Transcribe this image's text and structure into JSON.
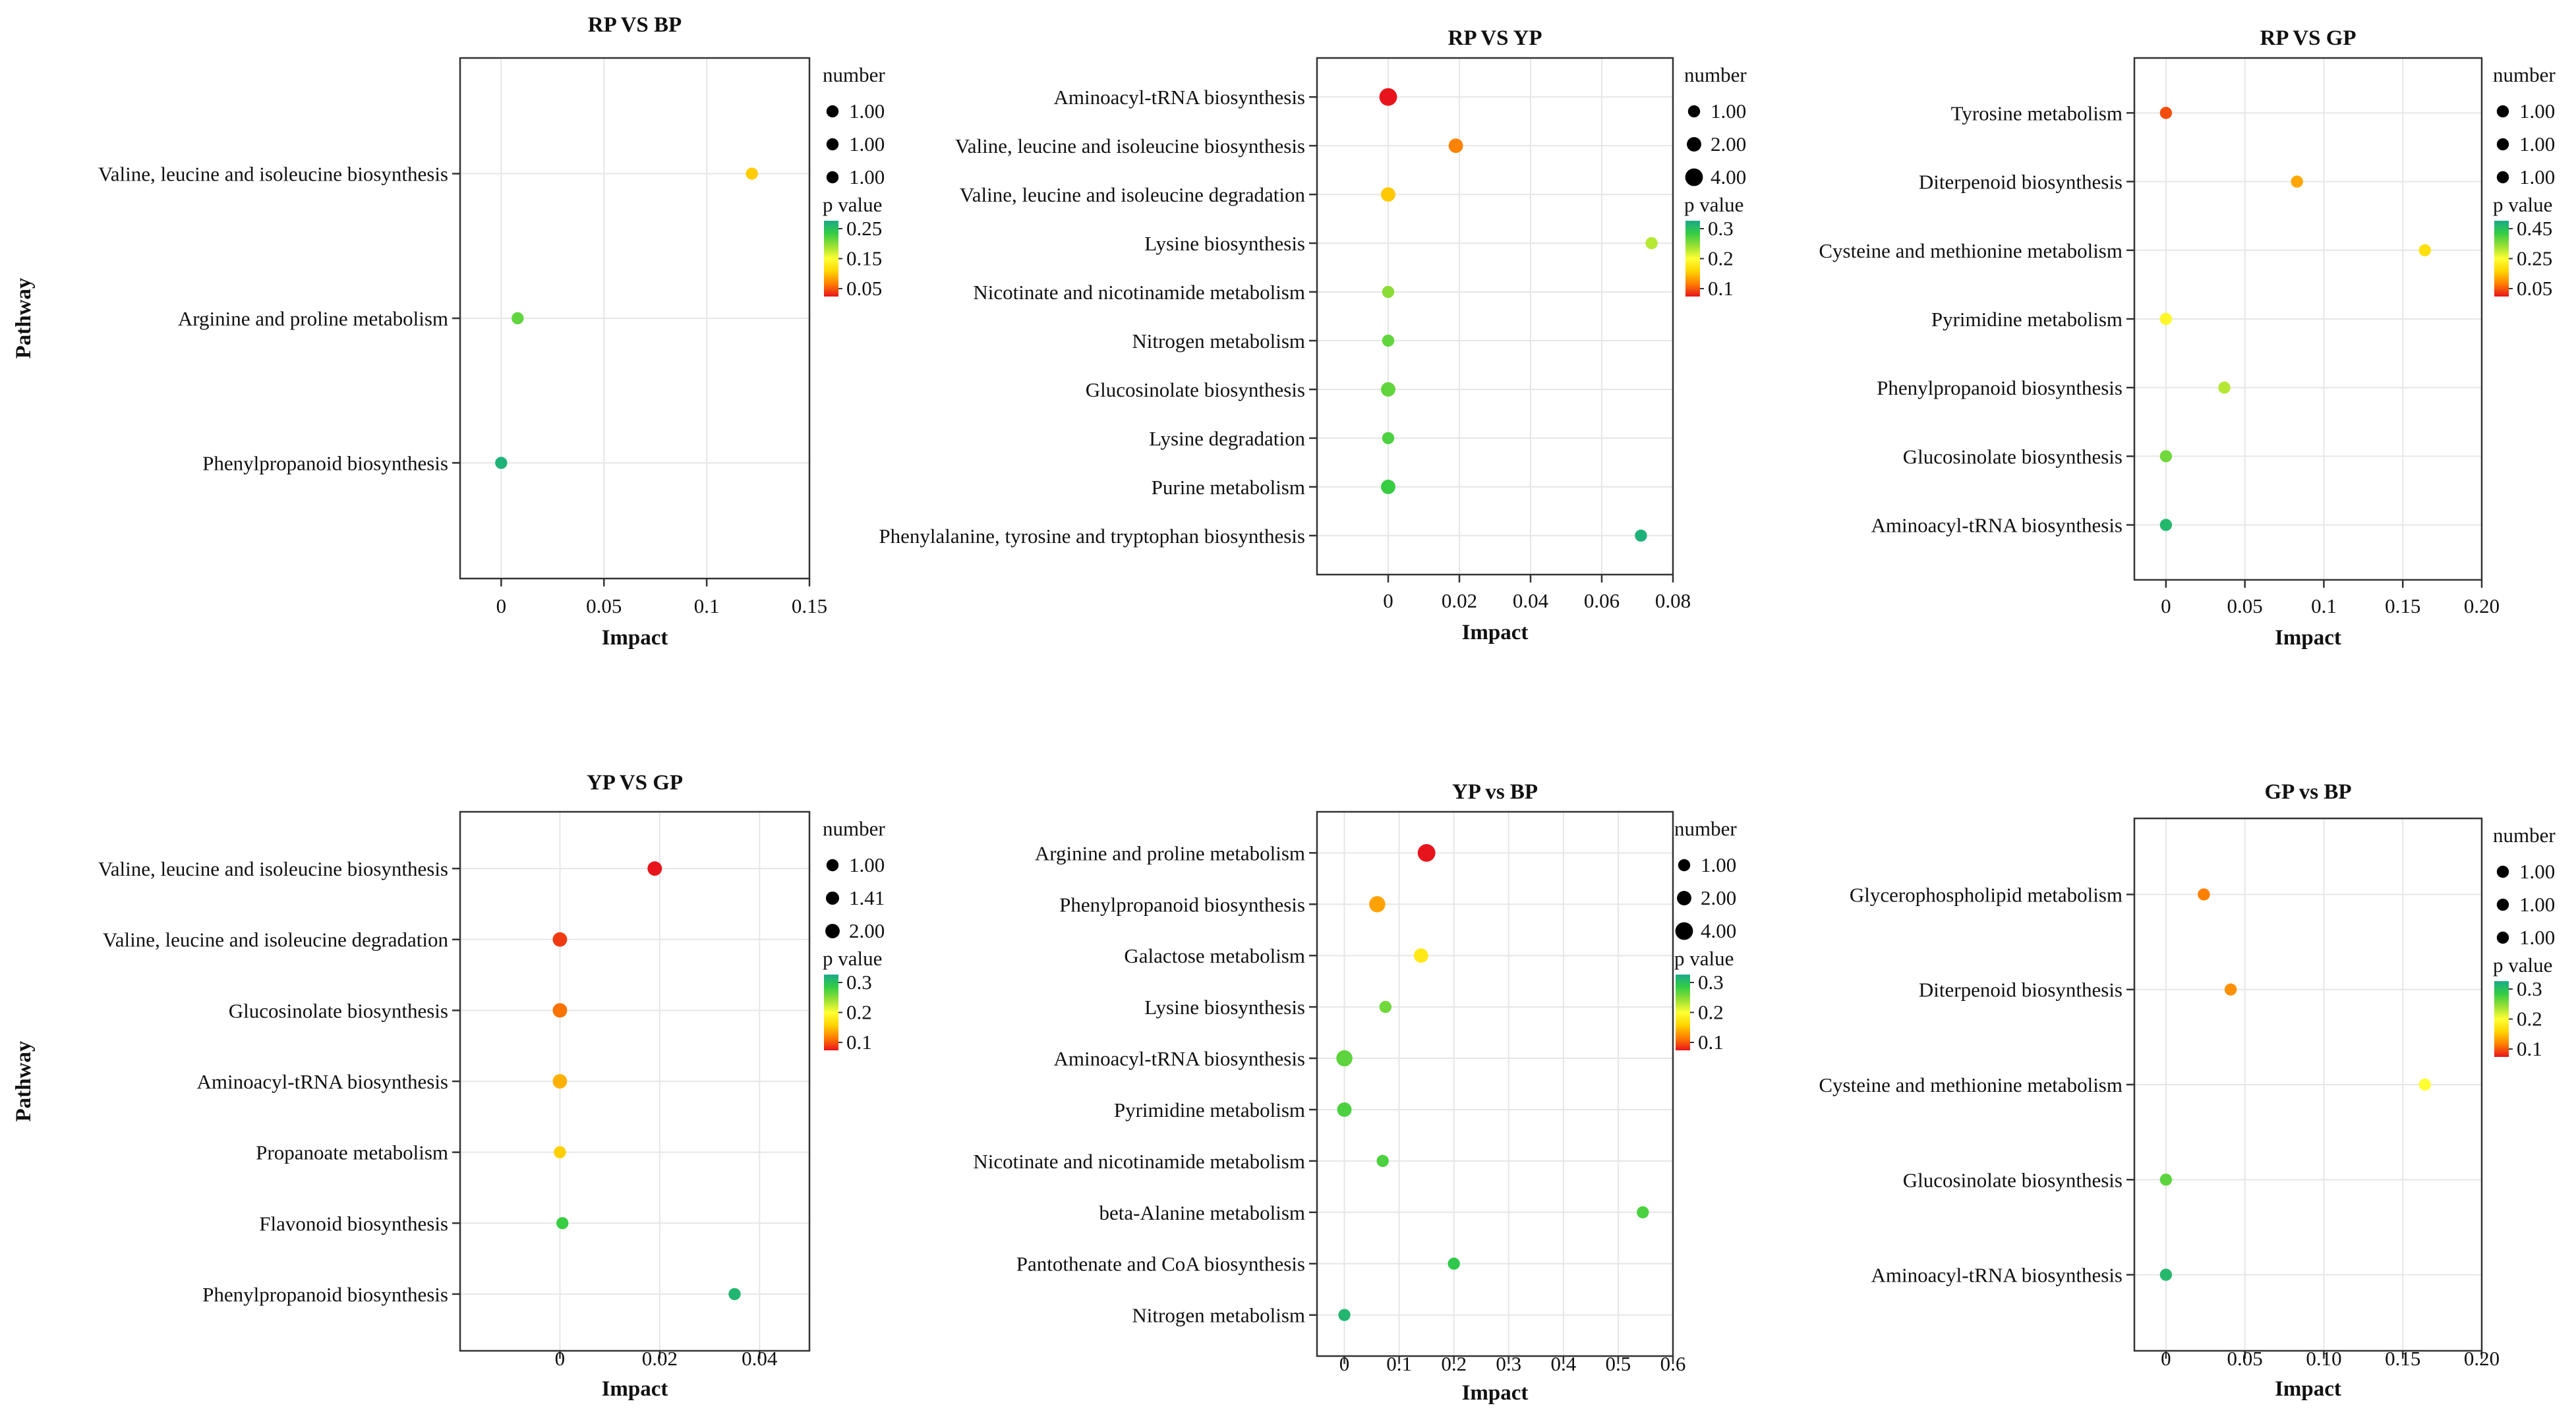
{
  "figure": {
    "y_axis_label": "Pathway",
    "x_axis_label": "Impact",
    "size_legend_title": "number",
    "color_legend_title": "p value"
  },
  "colors": {
    "scale": [
      "#e8141c",
      "#ff7f00",
      "#ffd400",
      "#ffff33",
      "#99e033",
      "#33cc44",
      "#1aaa88"
    ],
    "grid": "#e6e6e6",
    "axis": "#333333"
  },
  "chart_data": [
    {
      "type": "scatter",
      "title": "RP VS BP",
      "xlim": [
        -0.02,
        0.15
      ],
      "xticks": [
        0,
        0.05,
        0.1,
        0.15
      ],
      "xtick_labels": [
        "0",
        "0.05",
        "0.1",
        "0.15"
      ],
      "y_categories": [
        "Valine, leucine and isoleucine biosynthesis",
        "Arginine and proline metabolism",
        "Phenylpropanoid biosynthesis"
      ],
      "points": [
        {
          "pathway": "Valine, leucine and isoleucine biosynthesis",
          "impact": 0.122,
          "number": 1,
          "p_value": 0.13
        },
        {
          "pathway": "Arginine and proline metabolism",
          "impact": 0.008,
          "number": 1,
          "p_value": 0.24
        },
        {
          "pathway": "Phenylpropanoid biosynthesis",
          "impact": 0.0,
          "number": 1,
          "p_value": 0.29
        }
      ],
      "size_legend": [
        "1.00",
        "1.00",
        "1.00"
      ],
      "color_legend": {
        "ticks": [
          "0.25",
          "0.15",
          "0.05"
        ],
        "range": [
          0.05,
          0.3
        ]
      },
      "show_ylabel": true
    },
    {
      "type": "scatter",
      "title": "RP VS YP",
      "xlim": [
        -0.02,
        0.08
      ],
      "xticks": [
        0,
        0.02,
        0.04,
        0.06,
        0.08
      ],
      "xtick_labels": [
        "0",
        "0.02",
        "0.04",
        "0.06",
        "0.08"
      ],
      "y_categories": [
        "Aminoacyl-tRNA biosynthesis",
        "Valine, leucine and isoleucine biosynthesis",
        "Valine, leucine and isoleucine degradation",
        "Lysine biosynthesis",
        "Nicotinate and nicotinamide metabolism",
        "Nitrogen metabolism",
        "Glucosinolate biosynthesis",
        "Lysine degradation",
        "Purine metabolism",
        "Phenylalanine, tyrosine and tryptophan biosynthesis"
      ],
      "points": [
        {
          "pathway": "Aminoacyl-tRNA biosynthesis",
          "impact": 0.0,
          "number": 4,
          "p_value": 0.01
        },
        {
          "pathway": "Valine, leucine and isoleucine biosynthesis",
          "impact": 0.019,
          "number": 2,
          "p_value": 0.06
        },
        {
          "pathway": "Valine, leucine and isoleucine degradation",
          "impact": 0.0,
          "number": 2,
          "p_value": 0.1
        },
        {
          "pathway": "Lysine biosynthesis",
          "impact": 0.074,
          "number": 1,
          "p_value": 0.19
        },
        {
          "pathway": "Nicotinate and nicotinamide metabolism",
          "impact": 0.0,
          "number": 1,
          "p_value": 0.21
        },
        {
          "pathway": "Nitrogen metabolism",
          "impact": 0.0,
          "number": 1,
          "p_value": 0.23
        },
        {
          "pathway": "Glucosinolate biosynthesis",
          "impact": 0.0,
          "number": 2,
          "p_value": 0.23
        },
        {
          "pathway": "Lysine degradation",
          "impact": 0.0,
          "number": 1,
          "p_value": 0.24
        },
        {
          "pathway": "Purine metabolism",
          "impact": 0.0,
          "number": 2,
          "p_value": 0.25
        },
        {
          "pathway": "Phenylalanine, tyrosine and tryptophan biosynthesis",
          "impact": 0.071,
          "number": 1,
          "p_value": 0.29
        }
      ],
      "size_legend": [
        "1.00",
        "2.00",
        "4.00"
      ],
      "color_legend": {
        "ticks": [
          "0.3",
          "0.2",
          "0.1"
        ],
        "range": [
          0.01,
          0.3
        ]
      },
      "show_ylabel": false
    },
    {
      "type": "scatter",
      "title": "RP VS GP",
      "xlim": [
        -0.02,
        0.2
      ],
      "xticks": [
        0,
        0.05,
        0.1,
        0.15,
        0.2
      ],
      "xtick_labels": [
        "0",
        "0.05",
        "0.1",
        "0.15",
        "0.20"
      ],
      "y_categories": [
        "Tyrosine metabolism",
        "Diterpenoid biosynthesis",
        "Cysteine and methionine metabolism",
        "Pyrimidine metabolism",
        "Phenylpropanoid biosynthesis",
        "Glucosinolate biosynthesis",
        "Aminoacyl-tRNA biosynthesis"
      ],
      "points": [
        {
          "pathway": "Tyrosine metabolism",
          "impact": 0.0,
          "number": 1,
          "p_value": 0.09
        },
        {
          "pathway": "Diterpenoid biosynthesis",
          "impact": 0.083,
          "number": 1,
          "p_value": 0.16
        },
        {
          "pathway": "Cysteine and methionine metabolism",
          "impact": 0.164,
          "number": 1,
          "p_value": 0.22
        },
        {
          "pathway": "Pyrimidine metabolism",
          "impact": 0.0,
          "number": 1,
          "p_value": 0.26
        },
        {
          "pathway": "Phenylpropanoid biosynthesis",
          "impact": 0.037,
          "number": 1,
          "p_value": 0.33
        },
        {
          "pathway": "Glucosinolate biosynthesis",
          "impact": 0.0,
          "number": 1,
          "p_value": 0.38
        },
        {
          "pathway": "Aminoacyl-tRNA biosynthesis",
          "impact": 0.0,
          "number": 1,
          "p_value": 0.47
        }
      ],
      "size_legend": [
        "1.00",
        "1.00",
        "1.00"
      ],
      "color_legend": {
        "ticks": [
          "0.45",
          "0.25",
          "0.05"
        ],
        "range": [
          0.05,
          0.5
        ]
      },
      "show_ylabel": false
    },
    {
      "type": "scatter",
      "title": "YP VS GP",
      "xlim": [
        -0.02,
        0.05
      ],
      "xticks": [
        0,
        0.02,
        0.04
      ],
      "xtick_labels": [
        "0",
        "0.02",
        "0.04"
      ],
      "y_categories": [
        "Valine, leucine and isoleucine biosynthesis",
        "Valine, leucine and isoleucine degradation",
        "Glucosinolate biosynthesis",
        "Aminoacyl-tRNA biosynthesis",
        "Propanoate metabolism",
        "Flavonoid biosynthesis",
        "Phenylpropanoid biosynthesis"
      ],
      "points": [
        {
          "pathway": "Valine, leucine and isoleucine biosynthesis",
          "impact": 0.019,
          "number": 2,
          "p_value": 0.01
        },
        {
          "pathway": "Valine, leucine and isoleucine degradation",
          "impact": 0.0,
          "number": 2,
          "p_value": 0.03
        },
        {
          "pathway": "Glucosinolate biosynthesis",
          "impact": 0.0,
          "number": 2,
          "p_value": 0.06
        },
        {
          "pathway": "Aminoacyl-tRNA biosynthesis",
          "impact": 0.0,
          "number": 2,
          "p_value": 0.1
        },
        {
          "pathway": "Propanoate metabolism",
          "impact": 0.0,
          "number": 1,
          "p_value": 0.12
        },
        {
          "pathway": "Flavonoid biosynthesis",
          "impact": 0.0005,
          "number": 1,
          "p_value": 0.29
        },
        {
          "pathway": "Phenylpropanoid biosynthesis",
          "impact": 0.035,
          "number": 1,
          "p_value": 0.33
        }
      ],
      "size_legend": [
        "1.00",
        "1.41",
        "2.00"
      ],
      "color_legend": {
        "ticks": [
          "0.3",
          "0.2",
          "0.1"
        ],
        "range": [
          0.01,
          0.35
        ]
      },
      "show_ylabel": true
    },
    {
      "type": "scatter",
      "title": "YP vs BP",
      "xlim": [
        -0.05,
        0.6
      ],
      "xticks": [
        0,
        0.1,
        0.2,
        0.3,
        0.4,
        0.5,
        0.6
      ],
      "xtick_labels": [
        "0",
        "0.1",
        "0.2",
        "0.3",
        "0.4",
        "0.5",
        "0.6"
      ],
      "y_categories": [
        "Arginine and proline metabolism",
        "Phenylpropanoid biosynthesis",
        "Galactose metabolism",
        "Lysine biosynthesis",
        "Aminoacyl-tRNA biosynthesis",
        "Pyrimidine metabolism",
        "Nicotinate and nicotinamide metabolism",
        "beta-Alanine metabolism",
        "Pantothenate and CoA biosynthesis",
        "Nitrogen metabolism"
      ],
      "points": [
        {
          "pathway": "Arginine and proline metabolism",
          "impact": 0.15,
          "number": 4,
          "p_value": 0.01
        },
        {
          "pathway": "Phenylpropanoid biosynthesis",
          "impact": 0.06,
          "number": 3,
          "p_value": 0.09
        },
        {
          "pathway": "Galactose metabolism",
          "impact": 0.14,
          "number": 2,
          "p_value": 0.15
        },
        {
          "pathway": "Lysine biosynthesis",
          "impact": 0.075,
          "number": 1,
          "p_value": 0.26
        },
        {
          "pathway": "Aminoacyl-tRNA biosynthesis",
          "impact": 0.0,
          "number": 3,
          "p_value": 0.27
        },
        {
          "pathway": "Pyrimidine metabolism",
          "impact": 0.0,
          "number": 2,
          "p_value": 0.28
        },
        {
          "pathway": "Nicotinate and nicotinamide metabolism",
          "impact": 0.07,
          "number": 1,
          "p_value": 0.28
        },
        {
          "pathway": "beta-Alanine metabolism",
          "impact": 0.545,
          "number": 1,
          "p_value": 0.28
        },
        {
          "pathway": "Pantothenate and CoA biosynthesis",
          "impact": 0.2,
          "number": 1,
          "p_value": 0.3
        },
        {
          "pathway": "Nitrogen metabolism",
          "impact": 0.0,
          "number": 1,
          "p_value": 0.33
        }
      ],
      "size_legend": [
        "1.00",
        "2.00",
        "4.00"
      ],
      "color_legend": {
        "ticks": [
          "0.3",
          "0.2",
          "0.1"
        ],
        "range": [
          0.01,
          0.35
        ]
      },
      "show_ylabel": false
    },
    {
      "type": "scatter",
      "title": "GP vs BP",
      "xlim": [
        -0.02,
        0.2
      ],
      "xticks": [
        0,
        0.05,
        0.1,
        0.15,
        0.2
      ],
      "xtick_labels": [
        "0",
        "0.05",
        "0.10",
        "0.15",
        "0.20"
      ],
      "y_categories": [
        "Glycerophospholipid metabolism",
        "Diterpenoid biosynthesis",
        "Cysteine and methionine metabolism",
        "Glucosinolate biosynthesis",
        "Aminoacyl-tRNA biosynthesis"
      ],
      "points": [
        {
          "pathway": "Glycerophospholipid metabolism",
          "impact": 0.024,
          "number": 1,
          "p_value": 0.1
        },
        {
          "pathway": "Diterpenoid biosynthesis",
          "impact": 0.041,
          "number": 1,
          "p_value": 0.11
        },
        {
          "pathway": "Cysteine and methionine metabolism",
          "impact": 0.164,
          "number": 1,
          "p_value": 0.2
        },
        {
          "pathway": "Glucosinolate biosynthesis",
          "impact": 0.0,
          "number": 1,
          "p_value": 0.28
        },
        {
          "pathway": "Aminoacyl-tRNA biosynthesis",
          "impact": 0.0,
          "number": 1,
          "p_value": 0.33
        }
      ],
      "size_legend": [
        "1.00",
        "1.00",
        "1.00"
      ],
      "color_legend": {
        "ticks": [
          "0.3",
          "0.2",
          "0.1"
        ],
        "range": [
          0.05,
          0.35
        ]
      },
      "show_ylabel": false
    }
  ]
}
